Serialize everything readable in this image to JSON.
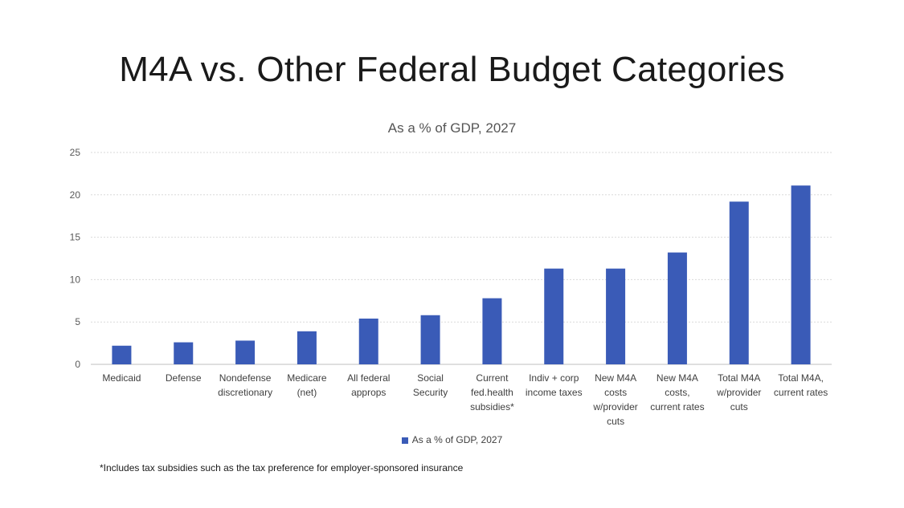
{
  "slide": {
    "title": "M4A vs. Other Federal Budget Categories",
    "footnote": "*Includes tax subsidies such as the tax preference for employer-sponsored insurance"
  },
  "colors": {
    "bar": "#3a5bb7",
    "grid": "#d9d9d9",
    "axis": "#bfbfbf"
  },
  "chart_data": {
    "type": "bar",
    "title": "As a % of GDP, 2027",
    "categories": [
      [
        "Medicaid"
      ],
      [
        "Defense"
      ],
      [
        "Nondefense",
        "discretionary"
      ],
      [
        "Medicare",
        "(net)"
      ],
      [
        "All federal",
        "approps"
      ],
      [
        "Social",
        "Security"
      ],
      [
        "Current",
        "fed.health",
        "subsidies*"
      ],
      [
        "Indiv + corp",
        "income taxes"
      ],
      [
        "New M4A",
        "costs",
        "w/provider",
        "cuts"
      ],
      [
        "New M4A",
        "costs,",
        "current rates"
      ],
      [
        "Total M4A",
        "w/provider",
        "cuts"
      ],
      [
        "Total M4A,",
        "current rates"
      ]
    ],
    "series": [
      {
        "name": "As a % of GDP, 2027",
        "values": [
          2.2,
          2.6,
          2.8,
          3.9,
          5.4,
          5.8,
          7.8,
          11.3,
          11.3,
          13.2,
          19.2,
          21.1
        ]
      }
    ],
    "ylim": [
      0,
      25
    ],
    "yticks": [
      0,
      5,
      10,
      15,
      20,
      25
    ],
    "grid": true,
    "legend": "bottom"
  }
}
